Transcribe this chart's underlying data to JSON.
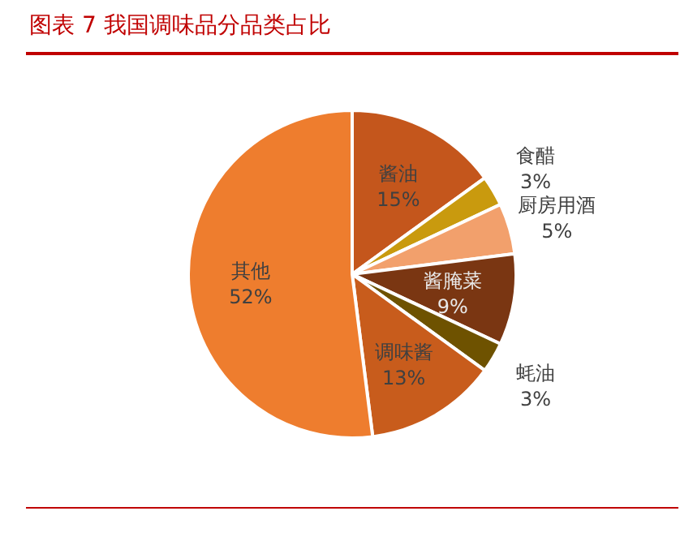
{
  "chart_data": {
    "type": "pie",
    "title": "图表 7   我国调味品分品类占比",
    "categories": [
      "酱油",
      "食醋",
      "厨房用酒",
      "酱腌菜",
      "蚝油",
      "调味酱",
      "其他"
    ],
    "values": [
      15,
      3,
      5,
      9,
      3,
      13,
      52
    ],
    "value_labels": [
      "15%",
      "3%",
      "5%",
      "9%",
      "3%",
      "13%",
      "52%"
    ],
    "colors": [
      "#c4561c",
      "#c99a0e",
      "#f2a06c",
      "#7a3612",
      "#6e5200",
      "#c85c1c",
      "#ee7d2e"
    ]
  }
}
